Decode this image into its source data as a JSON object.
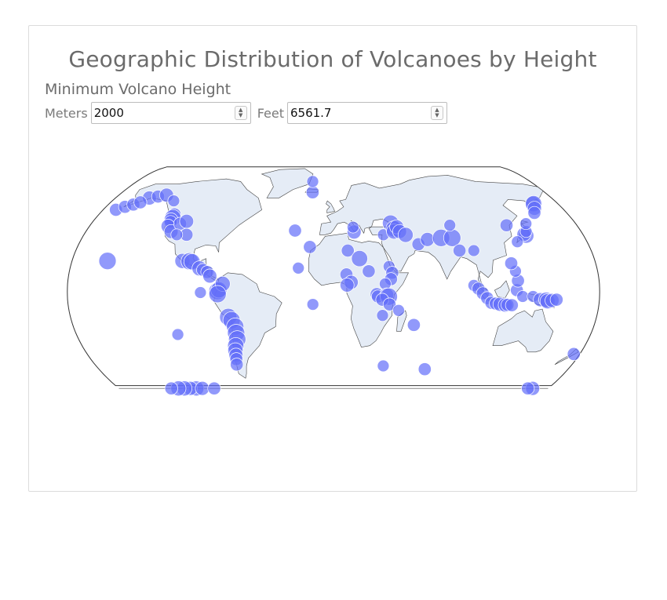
{
  "page": {
    "title": "Geographic Distribution of Volcanoes by Height",
    "filter_heading": "Minimum Volcano Height"
  },
  "controls": {
    "meters_label": "Meters",
    "meters_value": "2000",
    "feet_label": "Feet",
    "feet_value": "6561.7"
  },
  "colors": {
    "marker": "#636efa",
    "land": "#e5ecf6",
    "coast": "#444444"
  },
  "chart_data": {
    "type": "scatter",
    "projection": "natural earth",
    "marker_size_encodes": "height",
    "min_height_m": 2000,
    "points": [
      {
        "lon": -155.6,
        "lat": 19.5,
        "size": 1.0
      },
      {
        "lon": -152,
        "lat": 60,
        "size": 0.7
      },
      {
        "lon": -146,
        "lat": 61,
        "size": 0.6
      },
      {
        "lon": -140,
        "lat": 62,
        "size": 0.7
      },
      {
        "lon": -130,
        "lat": 58,
        "size": 0.5
      },
      {
        "lon": -122,
        "lat": 49,
        "size": 0.6
      },
      {
        "lon": -121.8,
        "lat": 46.9,
        "size": 0.9
      },
      {
        "lon": -122.2,
        "lat": 45.4,
        "size": 0.7
      },
      {
        "lon": -121.7,
        "lat": 44.1,
        "size": 0.6
      },
      {
        "lon": -122,
        "lat": 41.4,
        "size": 0.7
      },
      {
        "lon": -118,
        "lat": 38,
        "size": 0.7
      },
      {
        "lon": -114,
        "lat": 43,
        "size": 0.6
      },
      {
        "lon": -110,
        "lat": 44.5,
        "size": 0.7
      },
      {
        "lon": -106,
        "lat": 36,
        "size": 0.6
      },
      {
        "lon": -113,
        "lat": 36,
        "size": 0.5
      },
      {
        "lon": -104,
        "lat": 19.5,
        "size": 0.8
      },
      {
        "lon": -99,
        "lat": 19.3,
        "size": 1.0
      },
      {
        "lon": -97.3,
        "lat": 19.0,
        "size": 0.9
      },
      {
        "lon": -91.5,
        "lat": 14.8,
        "size": 0.8
      },
      {
        "lon": -89,
        "lat": 13.8,
        "size": 0.6
      },
      {
        "lon": -86,
        "lat": 12.5,
        "size": 0.6
      },
      {
        "lon": -84,
        "lat": 10,
        "size": 0.7
      },
      {
        "lon": -78.4,
        "lat": 0.5,
        "size": 1.0
      },
      {
        "lon": -77.5,
        "lat": 1.2,
        "size": 0.9
      },
      {
        "lon": -75,
        "lat": 5,
        "size": 0.8
      },
      {
        "lon": -78.4,
        "lat": -1.5,
        "size": 1.0
      },
      {
        "lon": -72,
        "lat": -16,
        "size": 1.0
      },
      {
        "lon": -70,
        "lat": -18,
        "size": 1.0
      },
      {
        "lon": -68,
        "lat": -22,
        "size": 1.0
      },
      {
        "lon": -68,
        "lat": -26,
        "size": 1.0
      },
      {
        "lon": -68,
        "lat": -30,
        "size": 1.0
      },
      {
        "lon": -70,
        "lat": -34,
        "size": 0.9
      },
      {
        "lon": -71,
        "lat": -37,
        "size": 0.8
      },
      {
        "lon": -71.5,
        "lat": -40,
        "size": 0.7
      },
      {
        "lon": -72,
        "lat": -42.5,
        "size": 0.6
      },
      {
        "lon": -73,
        "lat": -46,
        "size": 0.6
      },
      {
        "lon": -24,
        "lat": 15,
        "size": 0.5
      },
      {
        "lon": -16.6,
        "lat": 28.3,
        "size": 0.6
      },
      {
        "lon": -17.8,
        "lat": 64,
        "size": 0.6
      },
      {
        "lon": -19,
        "lat": 72,
        "size": 0.5
      },
      {
        "lon": -28,
        "lat": 38.6,
        "size": 0.6
      },
      {
        "lon": -14,
        "lat": -8,
        "size": 0.5
      },
      {
        "lon": 15,
        "lat": 37.7,
        "size": 0.7
      },
      {
        "lon": 14.4,
        "lat": 40.8,
        "size": 0.5
      },
      {
        "lon": 36,
        "lat": 36,
        "size": 0.5
      },
      {
        "lon": 42.5,
        "lat": 43.4,
        "size": 0.9
      },
      {
        "lon": 44.3,
        "lat": 39.7,
        "size": 0.9
      },
      {
        "lon": 44,
        "lat": 38,
        "size": 0.8
      },
      {
        "lon": 46.5,
        "lat": 41,
        "size": 0.7
      },
      {
        "lon": 48,
        "lat": 38,
        "size": 0.7
      },
      {
        "lon": 52,
        "lat": 35.9,
        "size": 0.8
      },
      {
        "lon": 60,
        "lat": 30,
        "size": 0.6
      },
      {
        "lon": 67,
        "lat": 33,
        "size": 0.7
      },
      {
        "lon": 77,
        "lat": 34,
        "size": 1.0
      },
      {
        "lon": 85,
        "lat": 34,
        "size": 1.0
      },
      {
        "lon": 88,
        "lat": 26,
        "size": 0.6
      },
      {
        "lon": 86,
        "lat": 42,
        "size": 0.5
      },
      {
        "lon": 98,
        "lat": 26,
        "size": 0.5
      },
      {
        "lon": 10,
        "lat": 26,
        "size": 0.6
      },
      {
        "lon": 18,
        "lat": 21,
        "size": 0.9
      },
      {
        "lon": 24,
        "lat": 13,
        "size": 0.6
      },
      {
        "lon": 38,
        "lat": 16,
        "size": 0.5
      },
      {
        "lon": 40,
        "lat": 12,
        "size": 0.6
      },
      {
        "lon": 39,
        "lat": 8,
        "size": 0.6
      },
      {
        "lon": 35,
        "lat": 5,
        "size": 0.5
      },
      {
        "lon": 8.8,
        "lat": 11,
        "size": 0.6
      },
      {
        "lon": 12,
        "lat": 6,
        "size": 0.7
      },
      {
        "lon": 9.2,
        "lat": 4.2,
        "size": 0.7
      },
      {
        "lon": 29.2,
        "lat": -1.5,
        "size": 0.6
      },
      {
        "lon": 30,
        "lat": -3,
        "size": 0.6
      },
      {
        "lon": 36,
        "lat": -2,
        "size": 0.7
      },
      {
        "lon": 37.4,
        "lat": -3.1,
        "size": 1.0
      },
      {
        "lon": 33,
        "lat": -5,
        "size": 0.6
      },
      {
        "lon": 38,
        "lat": -8,
        "size": 0.6
      },
      {
        "lon": 33.5,
        "lat": -15,
        "size": 0.5
      },
      {
        "lon": 44.3,
        "lat": -11.8,
        "size": 0.5
      },
      {
        "lon": 55.5,
        "lat": -21,
        "size": 0.6
      },
      {
        "lon": 70,
        "lat": -49,
        "size": 0.6
      },
      {
        "lon": 37.7,
        "lat": -46.9,
        "size": 0.5
      },
      {
        "lon": 95,
        "lat": 4,
        "size": 0.5
      },
      {
        "lon": 98,
        "lat": 2,
        "size": 0.6
      },
      {
        "lon": 101,
        "lat": -1,
        "size": 0.6
      },
      {
        "lon": 104,
        "lat": -4,
        "size": 0.6
      },
      {
        "lon": 107,
        "lat": -7,
        "size": 0.6
      },
      {
        "lon": 110,
        "lat": -7.5,
        "size": 0.6
      },
      {
        "lon": 112.9,
        "lat": -7.9,
        "size": 0.7
      },
      {
        "lon": 116.5,
        "lat": -8.4,
        "size": 0.7
      },
      {
        "lon": 118,
        "lat": -8.3,
        "size": 0.6
      },
      {
        "lon": 121,
        "lat": -8.5,
        "size": 0.6
      },
      {
        "lon": 124,
        "lat": 1,
        "size": 0.6
      },
      {
        "lon": 125,
        "lat": 7,
        "size": 0.6
      },
      {
        "lon": 124,
        "lat": 13,
        "size": 0.5
      },
      {
        "lon": 122,
        "lat": 18,
        "size": 0.6
      },
      {
        "lon": 128,
        "lat": -3,
        "size": 0.5
      },
      {
        "lon": 135,
        "lat": -3,
        "size": 0.5
      },
      {
        "lon": 140,
        "lat": -5,
        "size": 0.7
      },
      {
        "lon": 144,
        "lat": -5,
        "size": 0.8
      },
      {
        "lon": 145,
        "lat": -6,
        "size": 0.8
      },
      {
        "lon": 148,
        "lat": -5.5,
        "size": 0.7
      },
      {
        "lon": 151,
        "lat": -5,
        "size": 0.6
      },
      {
        "lon": 175.6,
        "lat": -39.3,
        "size": 0.6
      },
      {
        "lon": 138.7,
        "lat": 35.4,
        "size": 0.8
      },
      {
        "lon": 137.5,
        "lat": 36.3,
        "size": 0.7
      },
      {
        "lon": 130.5,
        "lat": 31.6,
        "size": 0.5
      },
      {
        "lon": 140,
        "lat": 38,
        "size": 0.5
      },
      {
        "lon": 128,
        "lat": 42,
        "size": 0.6
      },
      {
        "lon": 143,
        "lat": 43,
        "size": 0.5
      },
      {
        "lon": 160,
        "lat": 56,
        "size": 0.8
      },
      {
        "lon": 160.6,
        "lat": 56.1,
        "size": 0.9
      },
      {
        "lon": 158,
        "lat": 53,
        "size": 0.7
      },
      {
        "lon": 155,
        "lat": 50,
        "size": 0.6
      },
      {
        "lon": 167,
        "lat": -77.5,
        "size": 0.7
      },
      {
        "lon": 163,
        "lat": -74,
        "size": 0.6
      },
      {
        "lon": -115,
        "lat": -76,
        "size": 0.8
      },
      {
        "lon": -120,
        "lat": -76,
        "size": 0.7
      },
      {
        "lon": -125,
        "lat": -76,
        "size": 0.8
      },
      {
        "lon": -130,
        "lat": -76,
        "size": 0.8
      },
      {
        "lon": -110,
        "lat": -77,
        "size": 0.7
      },
      {
        "lon": -100,
        "lat": -76,
        "size": 0.6
      },
      {
        "lon": -136,
        "lat": -75,
        "size": 0.6
      },
      {
        "lon": -170,
        "lat": 52,
        "size": 0.6
      },
      {
        "lon": -165,
        "lat": 54,
        "size": 0.6
      },
      {
        "lon": -160,
        "lat": 55.5,
        "size": 0.6
      },
      {
        "lon": -156,
        "lat": 57,
        "size": 0.6
      },
      {
        "lon": -90,
        "lat": -0.5,
        "size": 0.5
      },
      {
        "lon": -109,
        "lat": -27,
        "size": 0.5
      }
    ]
  }
}
